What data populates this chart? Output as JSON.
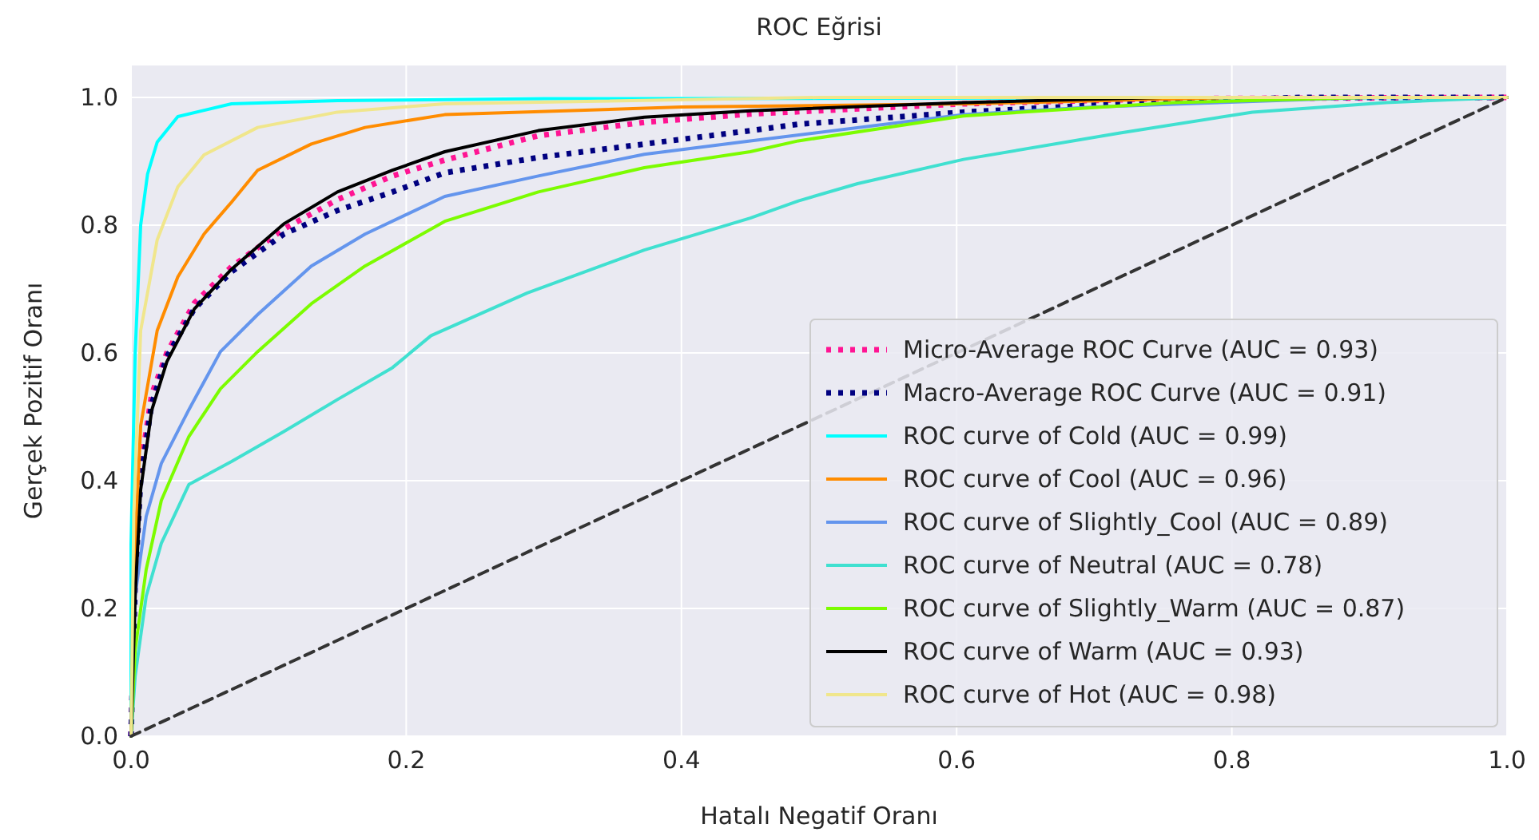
{
  "chart_data": {
    "type": "line",
    "title": "ROC Eğrisi",
    "xlabel": "Hatalı Negatif Oranı",
    "ylabel": "Gerçek Pozitif Oranı",
    "xlim": [
      0,
      1
    ],
    "ylim": [
      0,
      1.05
    ],
    "xticks": [
      {
        "value": 0,
        "label": "0.0"
      },
      0.2,
      0.4,
      0.6,
      0.8,
      {
        "value": 1,
        "label": "1.0"
      }
    ],
    "yticks": [
      {
        "value": 0,
        "label": "0.0"
      },
      0.2,
      0.4,
      0.6,
      0.8,
      {
        "value": 1,
        "label": "1.0"
      }
    ],
    "grid": true,
    "legend": "bottom right",
    "marker": "none",
    "series": [
      {
        "name": "Micro-Average ROC Curve (AUC = 0.93)",
        "color": "#ff1493",
        "line_style": "dotted",
        "x": [
          0,
          0.003,
          0.007,
          0.015,
          0.026,
          0.046,
          0.073,
          0.111,
          0.15,
          0.19,
          0.228,
          0.296,
          0.373,
          0.45,
          0.605,
          0.75,
          1
        ],
        "values": [
          0,
          0.25,
          0.42,
          0.535,
          0.6,
          0.678,
          0.735,
          0.794,
          0.84,
          0.877,
          0.902,
          0.94,
          0.961,
          0.974,
          0.99,
          0.998,
          1
        ]
      },
      {
        "name": "Macro-Average ROC Curve (AUC = 0.91)",
        "color": "#000080",
        "line_style": "dotted",
        "x": [
          0,
          0.003,
          0.007,
          0.015,
          0.026,
          0.046,
          0.073,
          0.111,
          0.15,
          0.19,
          0.228,
          0.296,
          0.373,
          0.45,
          0.485,
          0.605,
          0.718,
          0.85,
          1
        ],
        "values": [
          0,
          0.24,
          0.403,
          0.52,
          0.594,
          0.669,
          0.727,
          0.786,
          0.823,
          0.852,
          0.882,
          0.906,
          0.927,
          0.948,
          0.958,
          0.977,
          0.99,
          1,
          1
        ]
      },
      {
        "name": "ROC curve of Cold (AUC = 0.99)",
        "color": "#00ffff",
        "line_style": "solid",
        "x": [
          0,
          0,
          0.003,
          0.007,
          0.012,
          0.019,
          0.034,
          0.073,
          0.15,
          0.3,
          1
        ],
        "values": [
          0,
          0.3,
          0.6,
          0.8,
          0.88,
          0.93,
          0.97,
          0.99,
          0.995,
          0.998,
          1
        ]
      },
      {
        "name": "ROC curve of Cool (AUC = 0.96)",
        "color": "#ff8c00",
        "line_style": "solid",
        "x": [
          0,
          0.003,
          0.007,
          0.019,
          0.034,
          0.053,
          0.073,
          0.092,
          0.131,
          0.17,
          0.228,
          0.4,
          0.61,
          0.8,
          1
        ],
        "values": [
          0,
          0.3,
          0.486,
          0.635,
          0.719,
          0.786,
          0.836,
          0.886,
          0.927,
          0.953,
          0.973,
          0.985,
          0.99,
          1,
          1
        ]
      },
      {
        "name": "ROC curve of Slightly_Cool (AUC = 0.89)",
        "color": "#6495ed",
        "line_style": "solid",
        "x": [
          0,
          0.003,
          0.011,
          0.022,
          0.042,
          0.065,
          0.092,
          0.131,
          0.17,
          0.228,
          0.296,
          0.373,
          0.45,
          0.605,
          0.7,
          0.9,
          1
        ],
        "values": [
          0,
          0.22,
          0.344,
          0.427,
          0.511,
          0.602,
          0.66,
          0.736,
          0.786,
          0.845,
          0.877,
          0.911,
          0.932,
          0.973,
          0.985,
          1,
          1
        ]
      },
      {
        "name": "ROC curve of Neutral (AUC = 0.78)",
        "color": "#40e0d0",
        "line_style": "solid",
        "x": [
          0,
          0.003,
          0.011,
          0.022,
          0.042,
          0.073,
          0.111,
          0.15,
          0.19,
          0.218,
          0.288,
          0.373,
          0.45,
          0.485,
          0.528,
          0.605,
          0.718,
          0.815,
          0.912,
          1
        ],
        "values": [
          0,
          0.094,
          0.219,
          0.302,
          0.394,
          0.43,
          0.477,
          0.527,
          0.577,
          0.627,
          0.694,
          0.761,
          0.811,
          0.838,
          0.865,
          0.903,
          0.944,
          0.977,
          0.992,
          1
        ]
      },
      {
        "name": "ROC curve of Slightly_Warm (AUC = 0.87)",
        "color": "#7cfc00",
        "line_style": "solid",
        "x": [
          0,
          0.003,
          0.011,
          0.022,
          0.042,
          0.065,
          0.092,
          0.131,
          0.17,
          0.228,
          0.296,
          0.373,
          0.45,
          0.485,
          0.605,
          0.757,
          0.9,
          1
        ],
        "values": [
          0,
          0.136,
          0.261,
          0.369,
          0.469,
          0.544,
          0.602,
          0.677,
          0.736,
          0.806,
          0.852,
          0.89,
          0.915,
          0.932,
          0.971,
          0.992,
          1,
          1
        ]
      },
      {
        "name": "ROC curve of Warm (AUC = 0.93)",
        "color": "#000000",
        "line_style": "solid",
        "x": [
          0,
          0.003,
          0.007,
          0.015,
          0.026,
          0.046,
          0.073,
          0.111,
          0.15,
          0.19,
          0.228,
          0.296,
          0.373,
          0.45,
          0.605,
          0.75,
          1
        ],
        "values": [
          0,
          0.22,
          0.386,
          0.51,
          0.586,
          0.669,
          0.731,
          0.802,
          0.852,
          0.886,
          0.915,
          0.948,
          0.969,
          0.979,
          0.992,
          1,
          1
        ]
      },
      {
        "name": "ROC curve of Hot (AUC = 0.98)",
        "color": "#f0e68c",
        "line_style": "solid",
        "x": [
          0,
          0.002,
          0.007,
          0.019,
          0.034,
          0.053,
          0.092,
          0.15,
          0.228,
          0.5,
          1
        ],
        "values": [
          0,
          0.35,
          0.635,
          0.777,
          0.86,
          0.91,
          0.953,
          0.977,
          0.99,
          1,
          1
        ]
      },
      {
        "color": "#333333",
        "line_style": "dashed",
        "x": [
          0,
          1
        ],
        "values": [
          0,
          1
        ]
      }
    ]
  }
}
